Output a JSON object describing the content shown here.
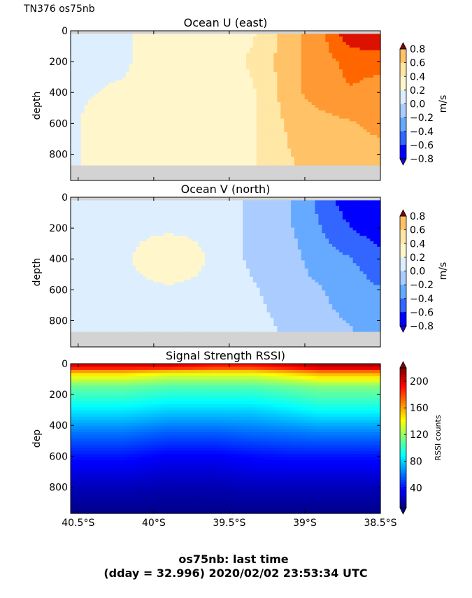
{
  "header": {
    "cruise_label": "TN376 os75nb"
  },
  "footer": {
    "line1": "os75nb: last time",
    "line2": "(dday = 32.996) 2020/02/02 23:53:34 UTC"
  },
  "colors": {
    "missing": "#d3d3d3",
    "diverging": [
      "#2200cc",
      "#0000ff",
      "#3366ff",
      "#66aaff",
      "#aaccff",
      "#ddeeff",
      "#fff6cc",
      "#ffe7a6",
      "#ffc266",
      "#ff9933",
      "#ff6600",
      "#dd1100",
      "#800000"
    ],
    "jet": [
      "#000080",
      "#0000ff",
      "#0080ff",
      "#00ffff",
      "#80ff80",
      "#ffff00",
      "#ff8000",
      "#ff0000",
      "#800000"
    ]
  },
  "chart_data": [
    {
      "type": "heatmap",
      "title": "Ocean U (east)",
      "ylabel": "depth",
      "colorbar_label": "m/s",
      "colorbar_ticks": [
        "0.8",
        "0.6",
        "0.4",
        "0.2",
        "0.0",
        "−0.2",
        "−0.4",
        "−0.6",
        "−0.8"
      ],
      "colorbar_range": [
        -0.8,
        0.8
      ],
      "x_ticks": [],
      "y_ticks": [
        "0",
        "200",
        "400",
        "600",
        "800"
      ],
      "xlim": [
        -40.55,
        -38.5
      ],
      "ylim": [
        970,
        0
      ],
      "missing_below_depth": 870,
      "field": {
        "x": [
          -40.55,
          -40.2,
          -39.9,
          -39.6,
          -39.35,
          -39.1,
          -38.9,
          -38.7,
          -38.5
        ],
        "rows": [
          {
            "depth": 30,
            "values": [
              -0.1,
              -0.1,
              0.05,
              0.05,
              0.05,
              0.3,
              0.45,
              0.75,
              0.8
            ]
          },
          {
            "depth": 200,
            "values": [
              -0.1,
              -0.1,
              0.05,
              -0.05,
              0.1,
              0.3,
              0.45,
              0.55,
              0.55
            ]
          },
          {
            "depth": 400,
            "values": [
              -0.1,
              -0.05,
              0.05,
              -0.05,
              0.05,
              0.3,
              0.45,
              0.5,
              0.45
            ]
          },
          {
            "depth": 600,
            "values": [
              -0.1,
              0.05,
              -0.05,
              -0.05,
              0.05,
              0.25,
              0.3,
              0.35,
              0.4
            ]
          },
          {
            "depth": 870,
            "values": [
              -0.1,
              0.05,
              -0.05,
              0.05,
              0.05,
              0.2,
              0.3,
              0.3,
              0.3
            ]
          }
        ]
      }
    },
    {
      "type": "heatmap",
      "title": "Ocean V (north)",
      "ylabel": "depth",
      "colorbar_label": "m/s",
      "colorbar_ticks": [
        "0.8",
        "0.6",
        "0.4",
        "0.2",
        "0.0",
        "−0.2",
        "−0.4",
        "−0.6",
        "−0.8"
      ],
      "colorbar_range": [
        -0.8,
        0.8
      ],
      "x_ticks": [],
      "y_ticks": [
        "0",
        "200",
        "400",
        "600",
        "800"
      ],
      "xlim": [
        -40.55,
        -38.5
      ],
      "ylim": [
        970,
        0
      ],
      "missing_below_depth": 870,
      "field": {
        "x": [
          -40.55,
          -40.2,
          -39.9,
          -39.6,
          -39.35,
          -39.1,
          -38.9,
          -38.7,
          -38.5
        ],
        "rows": [
          {
            "depth": 30,
            "values": [
              -0.1,
              -0.1,
              -0.1,
              -0.1,
              -0.25,
              -0.35,
              -0.55,
              -0.75,
              -0.8
            ]
          },
          {
            "depth": 200,
            "values": [
              -0.1,
              -0.1,
              -0.1,
              -0.1,
              -0.25,
              -0.35,
              -0.5,
              -0.65,
              -0.75
            ]
          },
          {
            "depth": 400,
            "values": [
              -0.1,
              -0.1,
              0.05,
              -0.1,
              -0.25,
              -0.3,
              -0.45,
              -0.5,
              -0.6
            ]
          },
          {
            "depth": 600,
            "values": [
              -0.1,
              -0.1,
              -0.1,
              -0.1,
              -0.2,
              -0.3,
              -0.35,
              -0.45,
              -0.5
            ]
          },
          {
            "depth": 870,
            "values": [
              -0.1,
              -0.1,
              -0.1,
              -0.1,
              -0.15,
              -0.25,
              -0.3,
              -0.35,
              -0.45
            ]
          }
        ]
      }
    },
    {
      "type": "heatmap",
      "title": "Signal Strength RSSI)",
      "ylabel": "dep",
      "colorbar_label": "RSSI counts",
      "colorbar_ticks": [
        "200",
        "160",
        "120",
        "80",
        "40"
      ],
      "colorbar_range": [
        10,
        220
      ],
      "x_ticks": [
        "40.5°S",
        "40°S",
        "39.5°S",
        "39°S",
        "38.5°S"
      ],
      "y_ticks": [
        "0",
        "200",
        "400",
        "600",
        "800"
      ],
      "xlim": [
        -40.55,
        -38.5
      ],
      "ylim": [
        970,
        0
      ],
      "field": {
        "x": [
          -40.55,
          -40.2,
          -39.9,
          -39.6,
          -39.35,
          -39.1,
          -38.9,
          -38.7,
          -38.5
        ],
        "rows": [
          {
            "depth": 20,
            "values": [
              200,
              200,
              200,
              190,
              190,
              200,
              210,
              210,
              210
            ]
          },
          {
            "depth": 60,
            "values": [
              150,
              150,
              140,
              140,
              140,
              150,
              160,
              160,
              160
            ]
          },
          {
            "depth": 150,
            "values": [
              110,
              110,
              105,
              105,
              105,
              110,
              115,
              115,
              115
            ]
          },
          {
            "depth": 300,
            "values": [
              85,
              85,
              80,
              80,
              80,
              85,
              90,
              90,
              90
            ]
          },
          {
            "depth": 450,
            "values": [
              60,
              60,
              55,
              55,
              58,
              60,
              62,
              62,
              62
            ]
          },
          {
            "depth": 600,
            "values": [
              40,
              40,
              35,
              35,
              38,
              40,
              40,
              40,
              40
            ]
          },
          {
            "depth": 800,
            "values": [
              22,
              22,
              20,
              20,
              22,
              22,
              22,
              22,
              22
            ]
          },
          {
            "depth": 970,
            "values": [
              12,
              12,
              12,
              12,
              12,
              12,
              12,
              12,
              12
            ]
          }
        ]
      }
    }
  ]
}
